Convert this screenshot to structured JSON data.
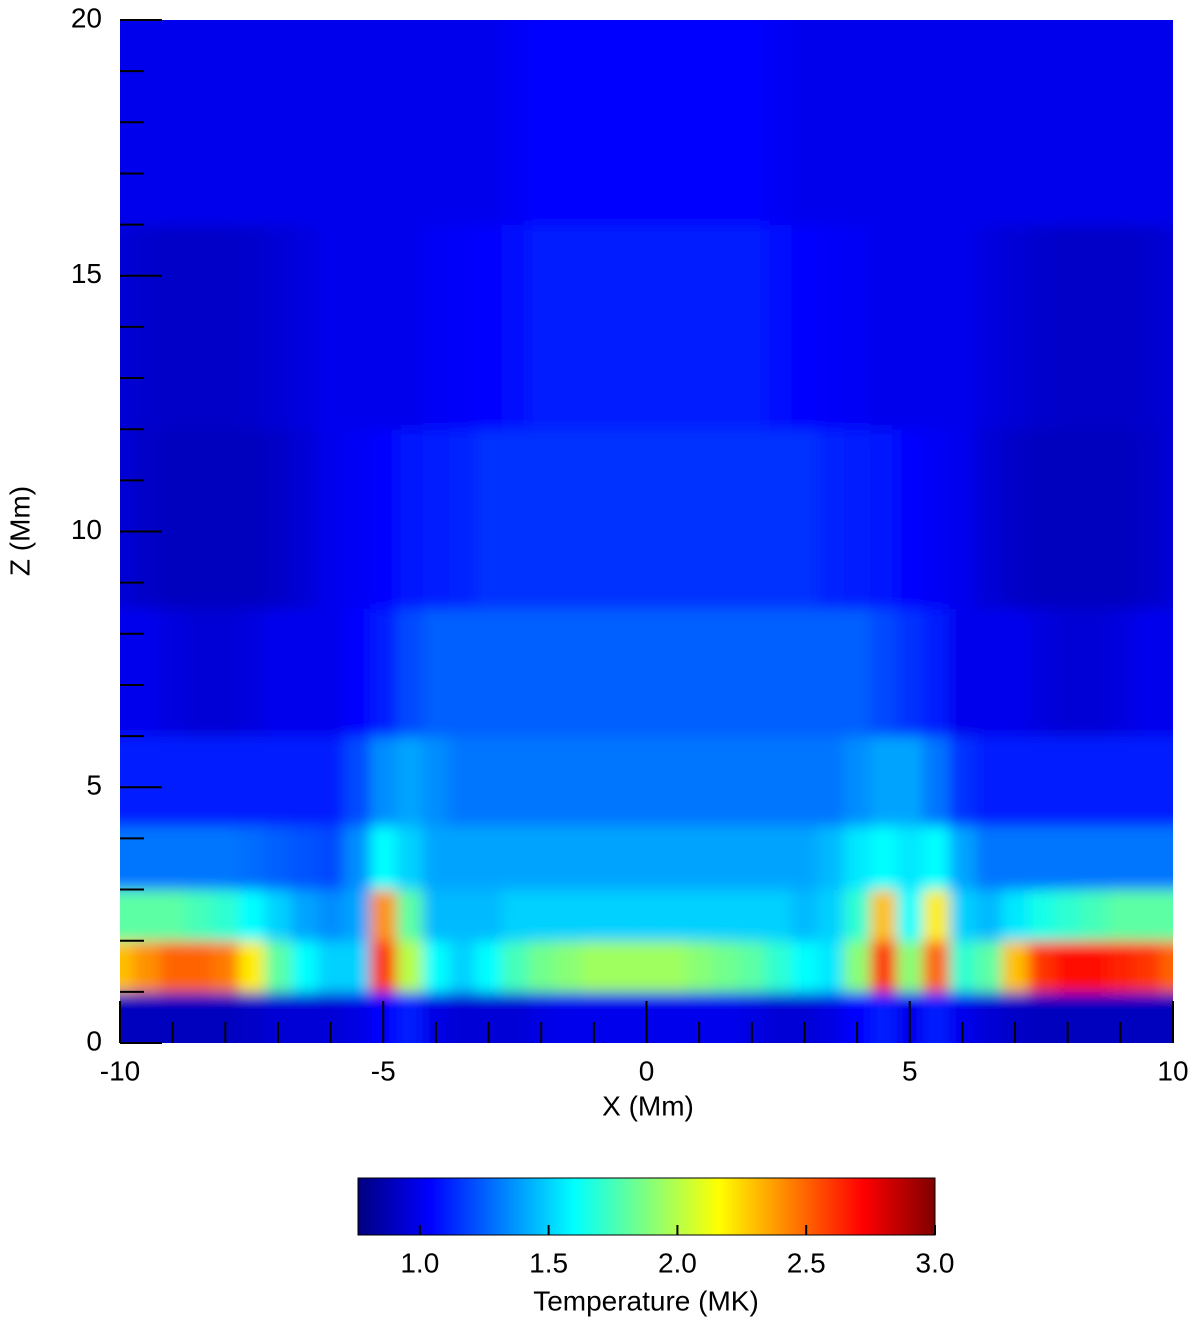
{
  "chart_data": {
    "type": "heatmap",
    "xlabel": "X (Mm)",
    "ylabel": "Z (Mm)",
    "colorbar_label": "Temperature (MK)",
    "xlim": [
      -10,
      10
    ],
    "ylim": [
      0,
      20
    ],
    "xticks": [
      -10,
      -5,
      0,
      5,
      10
    ],
    "yticks": [
      0,
      5,
      10,
      15,
      20
    ],
    "xticks_minor": [
      -9,
      -8,
      -7,
      -6,
      -4,
      -3,
      -2,
      -1,
      1,
      2,
      3,
      4,
      6,
      7,
      8,
      9
    ],
    "yticks_minor": [
      1,
      2,
      3,
      4,
      6,
      7,
      8,
      9,
      11,
      12,
      13,
      14,
      16,
      17,
      18,
      19
    ],
    "clim": [
      0.76,
      3.0
    ],
    "cticks": [
      {
        "value": 1,
        "label": "1.0"
      },
      1.5,
      {
        "value": 2,
        "label": "2.0"
      },
      2.5,
      {
        "value": 3,
        "label": "3.0"
      }
    ],
    "colormap": [
      "#00007f",
      "#0000ff",
      "#007fff",
      "#00ffff",
      "#7fff7f",
      "#ffff00",
      "#ff7f00",
      "#ff0000",
      "#7f0000"
    ],
    "x": [
      -10,
      -9.5,
      -9,
      -8.5,
      -8,
      -7.5,
      -7,
      -6.5,
      -6,
      -5.5,
      -5,
      -4.5,
      -4,
      -3.5,
      -3,
      -2.5,
      -2,
      -1.5,
      -1,
      -0.5,
      0,
      0.5,
      1,
      1.5,
      2,
      2.5,
      3,
      3.5,
      4,
      4.5,
      5,
      5.5,
      6,
      6.5,
      7,
      7.5,
      8,
      8.5,
      9,
      9.5,
      10
    ],
    "y": [
      0.5,
      1.5,
      2.5,
      3.5,
      5,
      7,
      10,
      14,
      18
    ],
    "z": [
      [
        0.9,
        0.9,
        0.9,
        0.9,
        0.9,
        0.92,
        0.95,
        0.95,
        0.95,
        0.98,
        1.05,
        1.1,
        0.98,
        0.95,
        0.95,
        0.95,
        0.98,
        1.0,
        1.0,
        1.0,
        1.0,
        1.0,
        1.0,
        1.0,
        0.98,
        0.95,
        0.95,
        0.98,
        1.05,
        1.1,
        1.0,
        1.1,
        1.0,
        0.95,
        0.92,
        0.9,
        0.9,
        0.9,
        0.9,
        0.9,
        0.9
      ],
      [
        2.3,
        2.4,
        2.5,
        2.5,
        2.45,
        2.2,
        1.8,
        1.6,
        1.5,
        1.5,
        2.6,
        2.0,
        1.6,
        1.5,
        1.6,
        1.75,
        1.85,
        1.9,
        1.95,
        1.95,
        1.95,
        1.95,
        1.9,
        1.85,
        1.8,
        1.7,
        1.6,
        1.55,
        1.9,
        2.6,
        1.9,
        2.5,
        1.7,
        1.8,
        2.3,
        2.6,
        2.7,
        2.7,
        2.65,
        2.6,
        2.5
      ],
      [
        1.8,
        1.8,
        1.8,
        1.75,
        1.7,
        1.6,
        1.5,
        1.4,
        1.35,
        1.4,
        2.4,
        1.8,
        1.45,
        1.45,
        1.45,
        1.5,
        1.5,
        1.5,
        1.5,
        1.5,
        1.5,
        1.5,
        1.5,
        1.5,
        1.5,
        1.5,
        1.45,
        1.5,
        1.7,
        2.3,
        1.6,
        2.2,
        1.5,
        1.45,
        1.55,
        1.65,
        1.7,
        1.75,
        1.8,
        1.8,
        1.8
      ],
      [
        1.3,
        1.3,
        1.3,
        1.3,
        1.3,
        1.28,
        1.25,
        1.22,
        1.2,
        1.35,
        1.6,
        1.5,
        1.4,
        1.4,
        1.4,
        1.4,
        1.4,
        1.4,
        1.4,
        1.4,
        1.4,
        1.4,
        1.4,
        1.4,
        1.4,
        1.4,
        1.4,
        1.45,
        1.55,
        1.6,
        1.55,
        1.6,
        1.4,
        1.3,
        1.3,
        1.3,
        1.3,
        1.3,
        1.3,
        1.3,
        1.3
      ],
      [
        1.1,
        1.1,
        1.1,
        1.1,
        1.1,
        1.1,
        1.1,
        1.1,
        1.1,
        1.2,
        1.35,
        1.4,
        1.35,
        1.3,
        1.3,
        1.3,
        1.3,
        1.3,
        1.3,
        1.3,
        1.3,
        1.3,
        1.3,
        1.3,
        1.3,
        1.3,
        1.3,
        1.3,
        1.35,
        1.4,
        1.4,
        1.3,
        1.15,
        1.1,
        1.1,
        1.1,
        1.1,
        1.1,
        1.1,
        1.1,
        1.1
      ],
      [
        1.0,
        1.0,
        0.97,
        0.95,
        0.95,
        0.97,
        1.0,
        1.0,
        1.0,
        1.05,
        1.1,
        1.2,
        1.25,
        1.25,
        1.25,
        1.25,
        1.25,
        1.25,
        1.25,
        1.25,
        1.25,
        1.25,
        1.25,
        1.25,
        1.25,
        1.25,
        1.25,
        1.25,
        1.25,
        1.2,
        1.15,
        1.1,
        1.0,
        1.0,
        1.0,
        0.97,
        0.95,
        0.95,
        0.97,
        1.0,
        1.0
      ],
      [
        0.95,
        0.92,
        0.9,
        0.9,
        0.9,
        0.9,
        0.92,
        0.95,
        1.0,
        1.02,
        1.05,
        1.08,
        1.1,
        1.12,
        1.15,
        1.15,
        1.15,
        1.15,
        1.15,
        1.15,
        1.15,
        1.15,
        1.15,
        1.15,
        1.15,
        1.15,
        1.15,
        1.12,
        1.1,
        1.08,
        1.05,
        1.02,
        1.0,
        0.95,
        0.92,
        0.9,
        0.9,
        0.9,
        0.9,
        0.92,
        0.95
      ],
      [
        0.95,
        0.93,
        0.92,
        0.92,
        0.92,
        0.93,
        0.95,
        0.97,
        1.0,
        1.0,
        1.0,
        1.0,
        1.02,
        1.03,
        1.05,
        1.07,
        1.1,
        1.1,
        1.1,
        1.1,
        1.1,
        1.1,
        1.1,
        1.1,
        1.1,
        1.07,
        1.05,
        1.03,
        1.02,
        1.0,
        1.0,
        1.0,
        1.0,
        0.97,
        0.95,
        0.93,
        0.92,
        0.92,
        0.92,
        0.93,
        0.95
      ],
      [
        1.0,
        1.0,
        1.0,
        1.0,
        1.0,
        1.0,
        1.0,
        1.0,
        1.0,
        1.0,
        1.0,
        1.0,
        1.0,
        1.0,
        1.0,
        1.02,
        1.05,
        1.05,
        1.05,
        1.05,
        1.05,
        1.05,
        1.05,
        1.05,
        1.05,
        1.02,
        1.0,
        1.0,
        1.0,
        1.0,
        1.0,
        1.0,
        1.0,
        1.0,
        1.0,
        1.0,
        1.0,
        1.0,
        1.0,
        1.0,
        1.0
      ]
    ]
  }
}
